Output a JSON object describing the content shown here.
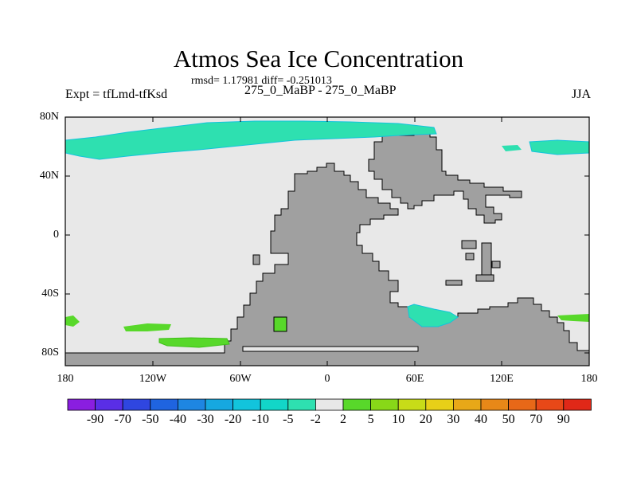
{
  "title": "Atmos Sea Ice Concentration",
  "stats_text": "rmsd= 1.17981 diff= -0.251013",
  "left_label": "Expt = tfLmd-tfKsd",
  "center_label": "275_0_MaBP - 275_0_MaBP",
  "right_label": "JJA",
  "lat_ticks": [
    "80N",
    "40N",
    "0",
    "40S",
    "80S"
  ],
  "lon_ticks": [
    "180",
    "120W",
    "60W",
    "0",
    "60E",
    "120E",
    "180"
  ],
  "colorbar": {
    "labels": [
      "-90",
      "-70",
      "-50",
      "-40",
      "-30",
      "-20",
      "-10",
      "-5",
      "-2",
      "2",
      "5",
      "10",
      "20",
      "30",
      "40",
      "50",
      "70",
      "90"
    ],
    "colors": [
      "#8a1ee0",
      "#5a2ee6",
      "#2f46e0",
      "#1f64e0",
      "#1e86e2",
      "#16a8e0",
      "#12c4dc",
      "#12d6c8",
      "#2ee0b0",
      "#e8e8e8",
      "#58d82a",
      "#88d818",
      "#c8dc18",
      "#e8d018",
      "#e8a818",
      "#e88818",
      "#e86818",
      "#e84818",
      "#e02818"
    ]
  },
  "colors": {
    "ocean": "#e8e8e8",
    "land": "#a0a0a0",
    "neg_ice": "#2ee0b0",
    "pos_ice": "#58d82a"
  }
}
